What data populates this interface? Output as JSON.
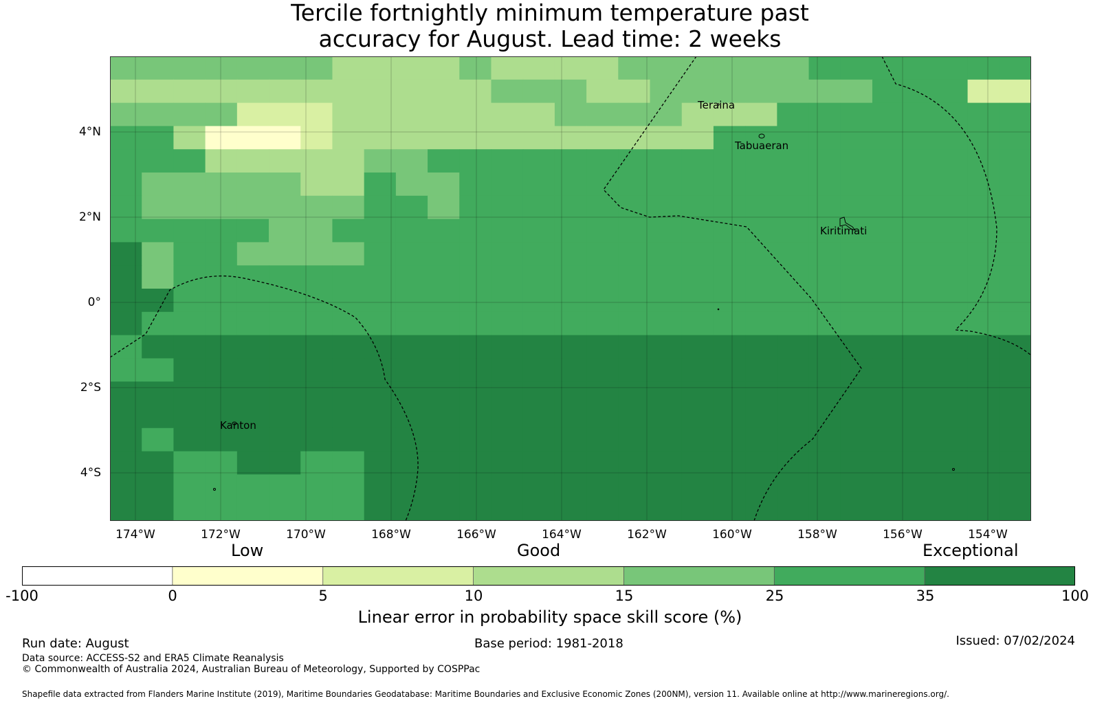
{
  "title": {
    "line1": "Tercile fortnightly minimum temperature past",
    "line2": "accuracy for August. Lead time: 2 weeks"
  },
  "map": {
    "lat_ticks": [
      "4°N",
      "2°N",
      "0°",
      "2°S",
      "4°S"
    ],
    "lon_ticks": [
      "174°W",
      "172°W",
      "170°W",
      "168°W",
      "166°W",
      "164°W",
      "162°W",
      "160°W",
      "158°W",
      "156°W",
      "154°W"
    ],
    "places": [
      "Teraina",
      "Tabuaeran",
      "Kiritimati",
      "Kanton"
    ],
    "grid_rows": [
      "33333332222322223333334444444",
      "22222222222233322333333344411",
      "33331112222222333322244444444",
      "44200012222222222224444444444",
      "44422222334444444444444444444",
      "43333322433444444444444444444",
      "43333333443444444444444444444",
      "44444334444444444444444444444",
      "53443333444444444444444444444",
      "53444444444444444444444444444",
      "55444444444444444444444444444",
      "54444444444444444444444444444",
      "45555555555555555555555555555",
      "44555555555555555555555555555",
      "55555555555555555555555555555",
      "55555555555555555555555555555",
      "54555555555555555555555555555",
      "55445544555555555555555555555",
      "55444444555555555555555555555",
      "55444444555555555555555555555"
    ],
    "palette": [
      "#ffffcc",
      "#d9f0a3",
      "#addd8e",
      "#78c679",
      "#41ab5d",
      "#238443"
    ]
  },
  "legend": {
    "categories": [
      "Low",
      "Good",
      "Exceptional"
    ],
    "colors": [
      "#ffffff",
      "#ffffcc",
      "#d9f0a3",
      "#addd8e",
      "#78c679",
      "#41ab5d",
      "#238443"
    ],
    "ticks": [
      "-100",
      "0",
      "5",
      "10",
      "15",
      "25",
      "35",
      "100"
    ],
    "label": "Linear error in probability space skill score (%)"
  },
  "footer": {
    "run_date": "Run date: August",
    "base_period": "Base period: 1981-2018",
    "issued": "Issued: 07/02/2024",
    "data_source": "Data source: ACCESS-S2 and ERA5 Climate Reanalysis",
    "copyright": "© Commonwealth of Australia 2024, Australian Bureau of Meteorology, Supported by COSPPac",
    "shapefile": "Shapefile data extracted from Flanders Marine Institute (2019), Maritime Boundaries Geodatabase: Maritime Boundaries and Exclusive Economic Zones (200NM), version 11. Available online at http://www.marineregions.org/."
  }
}
